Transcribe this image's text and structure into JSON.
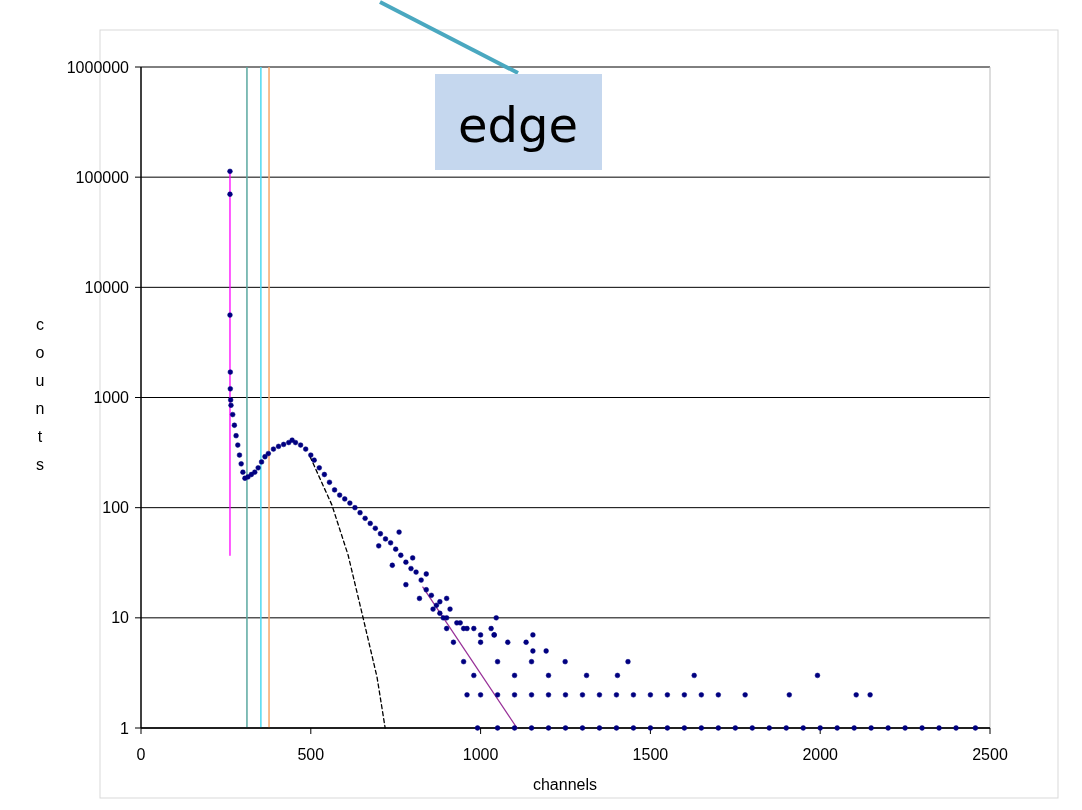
{
  "chart_data": {
    "type": "scatter",
    "xlabel": "channels",
    "ylabel": "counts",
    "annotations": [
      "edge"
    ],
    "xlim": [
      0,
      2500
    ],
    "xticks": [
      0,
      500,
      1000,
      1500,
      2000,
      2500
    ],
    "ylim": [
      1,
      1000000
    ],
    "yticks": [
      1,
      10,
      100,
      1000,
      10000,
      100000,
      1000000
    ],
    "log": "y",
    "grid": "y",
    "marker": "circle",
    "ref_lines": [
      {
        "axis": "x",
        "value": 312,
        "color": "#5aa8a0"
      },
      {
        "axis": "x",
        "value": 353,
        "color": "#4dd9f0"
      },
      {
        "axis": "x",
        "value": 377,
        "color": "#f5a76c"
      }
    ],
    "series": [
      {
        "type": "line",
        "color": "#ff00ff",
        "x": [
          262,
          262
        ],
        "values": [
          37,
          113000
        ],
        "marker": "none",
        "line_style": "solid"
      },
      {
        "type": "line",
        "color": "#993399",
        "x": [
          830,
          1107
        ],
        "values": [
          19,
          1
        ],
        "marker": "none",
        "line_style": "solid"
      },
      {
        "type": "line",
        "color": "#000000",
        "x": [
          498,
          562,
          610,
          654,
          695,
          719
        ],
        "values": [
          290,
          106,
          37,
          10,
          2.9,
          1
        ],
        "marker": "none",
        "line_style": "dashed"
      },
      {
        "color": "#000080",
        "x": [
          262,
          262,
          262,
          263,
          263,
          264,
          265,
          270,
          275,
          280,
          285,
          290,
          295,
          300,
          306,
          315,
          325,
          335,
          345,
          355,
          365,
          375,
          390,
          405,
          420,
          435,
          445,
          455,
          470,
          485,
          500,
          510,
          525,
          540,
          555,
          570,
          585,
          600,
          615,
          630,
          645,
          660,
          675,
          690,
          705,
          720,
          735,
          750,
          765,
          780,
          795,
          810,
          825,
          840,
          855,
          870,
          880,
          890,
          760,
          800,
          780,
          840,
          860,
          900,
          910,
          700,
          740,
          820,
          880,
          930,
          960,
          1000,
          900,
          940,
          980,
          1040,
          900,
          950,
          1031,
          1046,
          1040,
          1154,
          1134,
          920,
          1000,
          1080,
          1154,
          1193,
          950,
          1050,
          1150,
          1249,
          1434,
          980,
          1100,
          1200,
          1312,
          1403,
          1629,
          1992,
          960,
          1000,
          1050,
          1100,
          1150,
          1200,
          1250,
          1300,
          1350,
          1400,
          1450,
          1500,
          1550,
          1600,
          1650,
          1700,
          1779,
          1909,
          2106,
          2147,
          991,
          1050,
          1100,
          1150,
          1200,
          1250,
          1300,
          1350,
          1400,
          1450,
          1500,
          1550,
          1600,
          1650,
          1700,
          1750,
          1800,
          1850,
          1900,
          1950,
          2000,
          2050,
          2100,
          2150,
          2200,
          2250,
          2300,
          2350,
          2400,
          2457
        ],
        "values": [
          113000,
          70000,
          5600,
          1700,
          1200,
          950,
          850,
          700,
          560,
          450,
          370,
          300,
          250,
          210,
          185,
          190,
          200,
          210,
          230,
          260,
          290,
          310,
          340,
          360,
          375,
          390,
          410,
          390,
          370,
          340,
          300,
          270,
          230,
          200,
          170,
          145,
          130,
          120,
          110,
          100,
          90,
          80,
          72,
          65,
          58,
          52,
          48,
          42,
          37,
          32,
          28,
          26,
          22,
          18,
          16,
          13,
          11,
          10,
          60,
          35,
          20,
          25,
          12,
          15,
          12,
          45,
          30,
          15,
          14,
          9,
          8,
          7,
          10,
          9,
          8,
          7,
          8,
          8,
          8,
          10,
          7,
          7,
          6,
          6,
          6,
          6,
          5,
          5,
          4,
          4,
          4,
          4,
          4,
          3,
          3,
          3,
          3,
          3,
          3,
          3,
          2,
          2,
          2,
          2,
          2,
          2,
          2,
          2,
          2,
          2,
          2,
          2,
          2,
          2,
          2,
          2,
          2,
          2,
          2,
          2,
          1,
          1,
          1,
          1,
          1,
          1,
          1,
          1,
          1,
          1,
          1,
          1,
          1,
          1,
          1,
          1,
          1,
          1,
          1,
          1,
          1,
          1,
          1,
          1,
          1,
          1,
          1,
          1,
          1,
          1
        ]
      }
    ]
  }
}
